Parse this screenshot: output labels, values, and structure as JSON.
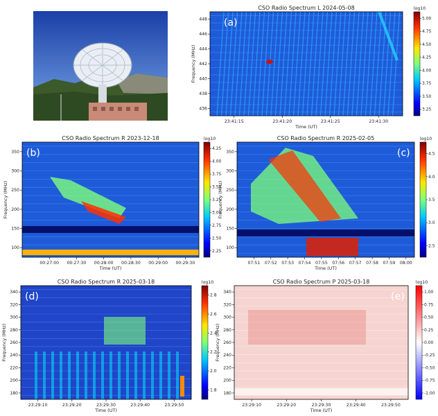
{
  "photo": {
    "description_icon": "radio-telescope-dish-photo"
  },
  "panels": [
    {
      "id": "a",
      "letter": "(a)",
      "title": "CSO Radio Spectrum L 2024-05-08",
      "xlabel": "Time (UT)",
      "ylabel": "Frequency (MHz)",
      "xticks": [
        "23:41:15",
        "23:41:20",
        "23:41:25",
        "23:41:30"
      ],
      "yticks": [
        "436",
        "438",
        "440",
        "442",
        "444",
        "446",
        "448"
      ],
      "cbar_label": "log10",
      "cbar_ticks": [
        "3.25",
        "3.50",
        "3.75",
        "4.00",
        "4.25",
        "4.50",
        "4.75",
        "5.00"
      ],
      "colormap": "jet"
    },
    {
      "id": "b",
      "letter": "(b)",
      "title": "CSO Radio Spectrum R 2023-12-18",
      "xlabel": "Time (UT)",
      "ylabel": "Frequency (MHz)",
      "xticks": [
        "00:27:00",
        "00:27:30",
        "00:28:00",
        "00:28:30",
        "00:29:00",
        "00:29:30"
      ],
      "yticks": [
        "100",
        "150",
        "200",
        "250",
        "300",
        "350"
      ],
      "cbar_label": "log10",
      "cbar_ticks": [
        "2.25",
        "2.50",
        "2.75",
        "3.00",
        "3.25",
        "3.50",
        "3.75",
        "4.00",
        "4.25"
      ],
      "colormap": "jet"
    },
    {
      "id": "c",
      "letter": "(c)",
      "title": "CSO Radio Spectrum R 2025-02-05",
      "xlabel": "Time (UT)",
      "ylabel": "Frequency (MHz)",
      "xticks": [
        "07:51",
        "07:52",
        "07:53",
        "07:54",
        "07:55",
        "07:56",
        "07:57",
        "07:58",
        "07:59",
        "08:00"
      ],
      "yticks": [
        "100",
        "150",
        "200",
        "250",
        "300",
        "350"
      ],
      "cbar_label": "log10",
      "cbar_ticks": [
        "2.5",
        "3.0",
        "3.5",
        "4.0",
        "4.5"
      ],
      "colormap": "jet"
    },
    {
      "id": "d",
      "letter": "(d)",
      "title": "CSO Radio Spectrum R 2025-03-18",
      "xlabel": "Time (UT)",
      "ylabel": "Frequency (MHz)",
      "xticks": [
        "23:29:10",
        "23:29:20",
        "23:29:30",
        "23:29:40",
        "23:29:50"
      ],
      "yticks": [
        "180",
        "200",
        "220",
        "240",
        "260",
        "280",
        "300",
        "320",
        "340"
      ],
      "cbar_label": "log10",
      "cbar_ticks": [
        "1.8",
        "2.0",
        "2.2",
        "2.4",
        "2.6",
        "2.8"
      ],
      "colormap": "jet"
    },
    {
      "id": "e",
      "letter": "(e)",
      "title": "CSO Radio Spectrum P 2025-03-18",
      "xlabel": "Time (UT)",
      "ylabel": "Frequency (MHz)",
      "xticks": [
        "23:29:10",
        "23:29:20",
        "23:29:30",
        "23:29:40",
        "23:29:50"
      ],
      "yticks": [
        "180",
        "200",
        "220",
        "240",
        "260",
        "280",
        "300",
        "320",
        "340"
      ],
      "cbar_label": "log10",
      "cbar_ticks": [
        "-1.00",
        "-0.75",
        "-0.50",
        "-0.25",
        "0.00",
        "0.25",
        "0.50",
        "0.75",
        "1.00"
      ],
      "colormap": "bwr"
    }
  ],
  "chart_data": [
    {
      "type": "heatmap",
      "title": "CSO Radio Spectrum L 2024-05-08",
      "xlabel": "Time (UT)",
      "ylabel": "Frequency (MHz)",
      "ylim": [
        435,
        449
      ],
      "colorbar": {
        "label": "log10",
        "range": [
          3.2,
          5.2
        ]
      }
    },
    {
      "type": "heatmap",
      "title": "CSO Radio Spectrum R 2023-12-18",
      "xlabel": "Time (UT)",
      "ylabel": "Frequency (MHz)",
      "ylim": [
        95,
        350
      ],
      "colorbar": {
        "label": "log10",
        "range": [
          2.2,
          4.35
        ]
      }
    },
    {
      "type": "heatmap",
      "title": "CSO Radio Spectrum R 2025-02-05",
      "xlabel": "Time (UT)",
      "ylabel": "Frequency (MHz)",
      "ylim": [
        95,
        350
      ],
      "colorbar": {
        "label": "log10",
        "range": [
          2.2,
          4.9
        ]
      }
    },
    {
      "type": "heatmap",
      "title": "CSO Radio Spectrum R 2025-03-18",
      "xlabel": "Time (UT)",
      "ylabel": "Frequency (MHz)",
      "ylim": [
        170,
        340
      ],
      "colorbar": {
        "label": "log10",
        "range": [
          1.7,
          2.9
        ]
      }
    },
    {
      "type": "heatmap",
      "title": "CSO Radio Spectrum P 2025-03-18",
      "xlabel": "Time (UT)",
      "ylabel": "Frequency (MHz)",
      "ylim": [
        170,
        340
      ],
      "colorbar": {
        "label": "log10",
        "range": [
          -1.0,
          1.0
        ]
      }
    }
  ]
}
